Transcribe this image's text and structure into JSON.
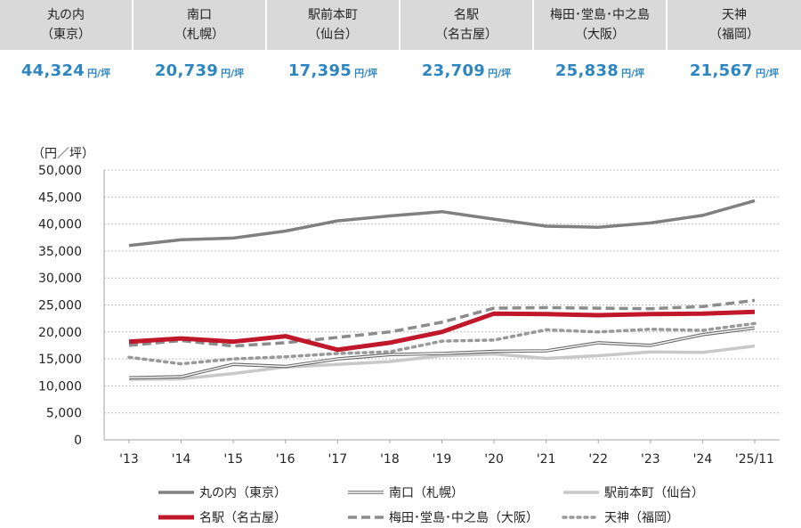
{
  "summary": [
    {
      "line1": "丸の内",
      "line2": "（東京）",
      "value": "44,324",
      "unit": "円/坪"
    },
    {
      "line1": "南口",
      "line2": "（札幌）",
      "value": "20,739",
      "unit": "円/坪"
    },
    {
      "line1": "駅前本町",
      "line2": "（仙台）",
      "value": "17,395",
      "unit": "円/坪"
    },
    {
      "line1": "名駅",
      "line2": "（名古屋）",
      "value": "23,709",
      "unit": "円/坪"
    },
    {
      "line1": "梅田･堂島･中之島",
      "line2": "（大阪）",
      "value": "25,838",
      "unit": "円/坪"
    },
    {
      "line1": "天神",
      "line2": "（福岡）",
      "value": "21,567",
      "unit": "円/坪"
    }
  ],
  "chart_data": {
    "type": "line",
    "title": "",
    "ylabel": "（円／坪）",
    "xlabel": "",
    "categories": [
      "'13",
      "'14",
      "'15",
      "'16",
      "'17",
      "'18",
      "'19",
      "'20",
      "'21",
      "'22",
      "'23",
      "'24",
      "'25/11"
    ],
    "ylim": [
      0,
      50000
    ],
    "yticks": [
      0,
      5000,
      10000,
      15000,
      20000,
      25000,
      30000,
      35000,
      40000,
      45000,
      50000
    ],
    "ytick_labels": [
      "0",
      "5,000",
      "10,000",
      "15,000",
      "20,000",
      "25,000",
      "30,000",
      "35,000",
      "40,000",
      "45,000",
      "50,000"
    ],
    "grid": true,
    "legend_position": "bottom",
    "series": [
      {
        "name": "丸の内（東京）",
        "color": "#808080",
        "style": "solid",
        "values": [
          36000,
          37100,
          37400,
          38700,
          40600,
          41500,
          42300,
          40900,
          39600,
          39400,
          40200,
          41600,
          44324
        ]
      },
      {
        "name": "南口（札幌）",
        "color": "#666666",
        "style": "double",
        "values": [
          11500,
          11700,
          14000,
          13600,
          15000,
          15800,
          16000,
          16400,
          16500,
          18000,
          17500,
          19500,
          20739
        ]
      },
      {
        "name": "駅前本町（仙台）",
        "color": "#c8c8c8",
        "style": "solid",
        "values": [
          11200,
          11300,
          12300,
          13500,
          14000,
          14500,
          15600,
          15900,
          15100,
          15600,
          16300,
          16200,
          17395
        ]
      },
      {
        "name": "名駅（名古屋）",
        "color": "#c0182a",
        "style": "thick",
        "values": [
          18200,
          18800,
          18200,
          19200,
          16700,
          18000,
          20000,
          23400,
          23300,
          23100,
          23300,
          23400,
          23709
        ]
      },
      {
        "name": "梅田･堂島･中之島（大阪）",
        "color": "#8c8c8c",
        "style": "dash",
        "values": [
          17500,
          18400,
          17400,
          18000,
          19000,
          20000,
          21800,
          24400,
          24500,
          24400,
          24300,
          24700,
          25838
        ]
      },
      {
        "name": "天神（福岡）",
        "color": "#999999",
        "style": "dot",
        "values": [
          15300,
          14100,
          15000,
          15400,
          16000,
          16300,
          18300,
          18500,
          20400,
          20000,
          20500,
          20300,
          21567
        ]
      }
    ]
  }
}
